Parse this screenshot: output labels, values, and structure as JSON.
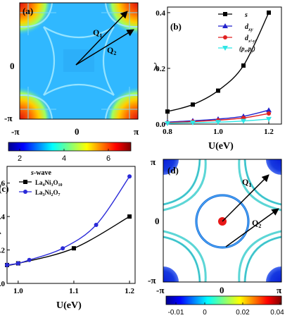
{
  "panels": {
    "a": {
      "label": "(a)",
      "x_ticks": [
        "-π",
        "0",
        "π"
      ],
      "y_ticks": [
        "0",
        "-π"
      ],
      "vectors": [
        "Q1",
        "Q2"
      ],
      "colorbar_ticks": [
        "2",
        "4",
        "6"
      ],
      "colorbar_range": [
        1,
        6.5
      ]
    },
    "b": {
      "label": "(b)",
      "ylabel": "λ",
      "xlabel": "U(eV)",
      "legend": [
        "s",
        "d_xy",
        "d_x2-y2",
        "(p_x,p_y)"
      ]
    },
    "c": {
      "label": "(c)",
      "ylabel": "λ",
      "xlabel": "U(eV)",
      "legend_title": "s-wave",
      "legend": [
        "La4Ni3O10",
        "La3Ni2O7"
      ]
    },
    "d": {
      "label": "(d)",
      "x_ticks": [
        "-π",
        "0",
        "π"
      ],
      "y_ticks": [
        "π",
        "0",
        "-π"
      ],
      "vectors": [
        "Q1",
        "Q2"
      ],
      "colorbar_ticks": [
        "-0.01",
        "0",
        "0.02",
        "0.04"
      ],
      "colorbar_range": [
        -0.015,
        0.045
      ]
    }
  },
  "chart_data": [
    {
      "type": "heatmap",
      "panel": "a",
      "description_values": "susceptibility-like map in k-space, hot corners ~6, background ~2",
      "x_range": [
        -3.1416,
        3.1416
      ],
      "y_range": [
        -3.1416,
        3.1416
      ],
      "colorbar_range": [
        1,
        6.5
      ]
    },
    {
      "type": "line",
      "panel": "b",
      "xlabel": "U(eV)",
      "ylabel": "λ",
      "xlim": [
        0.8,
        1.25
      ],
      "ylim": [
        0,
        0.42
      ],
      "xticks": [
        0.8,
        1.0,
        1.2
      ],
      "yticks": [
        0.0,
        0.2,
        0.4
      ],
      "series": [
        {
          "name": "s",
          "color": "#000000",
          "marker": "square",
          "x": [
            0.8,
            0.9,
            1.0,
            1.1,
            1.2
          ],
          "y": [
            0.045,
            0.07,
            0.12,
            0.21,
            0.4
          ]
        },
        {
          "name": "d_xy",
          "color": "#2222cc",
          "marker": "triangle",
          "x": [
            0.8,
            0.9,
            1.0,
            1.1,
            1.2
          ],
          "y": [
            0.007,
            0.012,
            0.018,
            0.028,
            0.05
          ]
        },
        {
          "name": "d_x2-y2",
          "color": "#e02020",
          "marker": "circle",
          "x": [
            0.8,
            0.9,
            1.0,
            1.1,
            1.2
          ],
          "y": [
            0.005,
            0.009,
            0.014,
            0.022,
            0.038
          ]
        },
        {
          "name": "(p_x,p_y)",
          "color": "#2ee6e6",
          "marker": "triangle-down",
          "x": [
            0.8,
            0.9,
            1.0,
            1.1,
            1.2
          ],
          "y": [
            0.003,
            0.005,
            0.007,
            0.011,
            0.018
          ]
        }
      ]
    },
    {
      "type": "line",
      "panel": "c",
      "xlabel": "U(eV)",
      "ylabel": "λ",
      "xlim": [
        0.98,
        1.21
      ],
      "ylim": [
        0,
        0.7
      ],
      "xticks": [
        1.0,
        1.1,
        1.2
      ],
      "yticks": [
        0.0,
        0.2,
        0.4,
        0.6
      ],
      "series": [
        {
          "name": "La4Ni3O10",
          "color": "#000000",
          "marker": "square",
          "x": [
            0.98,
            1.0,
            1.1,
            1.2
          ],
          "y": [
            0.11,
            0.12,
            0.21,
            0.4
          ]
        },
        {
          "name": "La3Ni2O7",
          "color": "#2a2ad8",
          "marker": "circle",
          "x": [
            0.98,
            1.0,
            1.02,
            1.08,
            1.14,
            1.2
          ],
          "y": [
            0.11,
            0.12,
            0.14,
            0.21,
            0.35,
            0.64
          ]
        }
      ]
    },
    {
      "type": "heatmap",
      "panel": "d",
      "description_values": "Fermi surface gap function contours, values near 0 (cyan) on arcs, blue ~-0.01 pockets at corners, red center",
      "x_range": [
        -3.1416,
        3.1416
      ],
      "y_range": [
        -3.1416,
        3.1416
      ],
      "colorbar_range": [
        -0.015,
        0.045
      ]
    }
  ]
}
